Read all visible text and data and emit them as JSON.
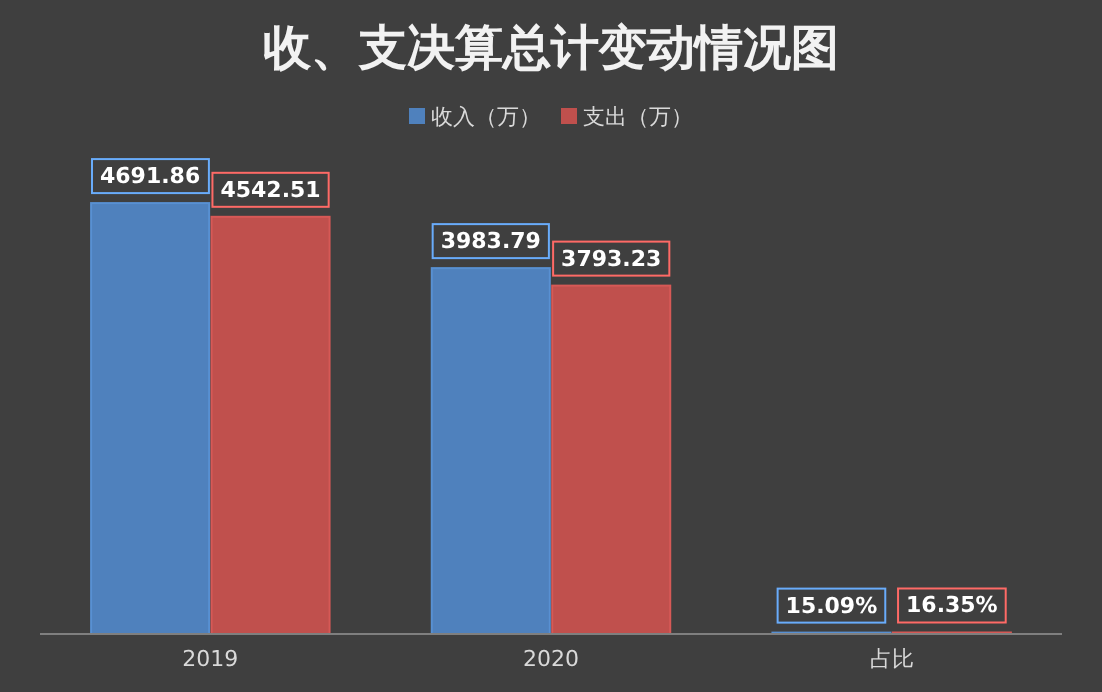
{
  "chart_data": {
    "type": "bar",
    "title": "收、支决算总计变动情况图",
    "categories": [
      "2019",
      "2020",
      "占比"
    ],
    "series": [
      {
        "name": "收入（万）",
        "color": "#4f81bd",
        "values": [
          4691.86,
          3983.79,
          15.09
        ],
        "value_labels": [
          "4691.86",
          "3983.79",
          "15.09%"
        ]
      },
      {
        "name": "支出（万）",
        "color": "#c0504d",
        "values": [
          4542.51,
          3793.23,
          16.35
        ],
        "value_labels": [
          "4542.51",
          "3793.23",
          "16.35%"
        ]
      }
    ],
    "legend": "top",
    "grid": false
  }
}
